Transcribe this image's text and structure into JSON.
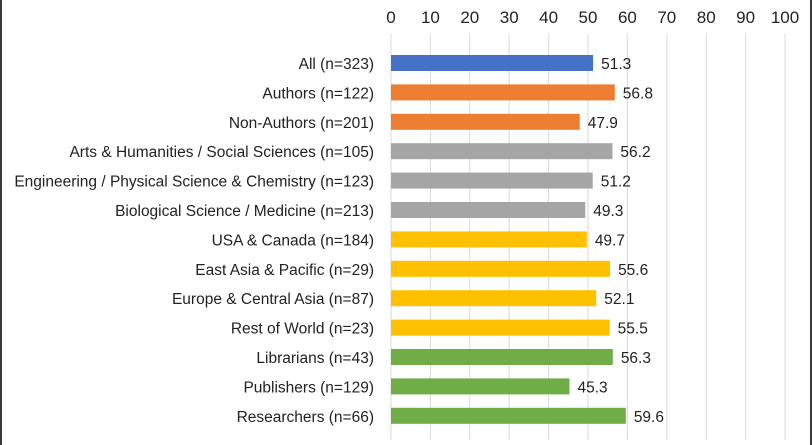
{
  "chart_data": {
    "type": "bar",
    "orientation": "horizontal",
    "categories": [
      "All (n=323)",
      "Authors (n=122)",
      "Non-Authors (n=201)",
      "Arts & Humanities / Social Sciences (n=105)",
      "Engineering / Physical Science & Chemistry (n=123)",
      "Biological Science / Medicine (n=213)",
      "USA & Canada (n=184)",
      "East Asia & Pacific (n=29)",
      "Europe & Central Asia (n=87)",
      "Rest of World (n=23)",
      "Librarians (n=43)",
      "Publishers (n=129)",
      "Researchers (n=66)"
    ],
    "values": [
      51.3,
      56.8,
      47.9,
      56.2,
      51.2,
      49.3,
      49.7,
      55.6,
      52.1,
      55.5,
      56.3,
      45.3,
      59.6
    ],
    "data_labels": [
      "51.3",
      "56.8",
      "47.9",
      "56.2",
      "51.2",
      "49.3",
      "49.7",
      "55.6",
      "52.1",
      "55.5",
      "56.3",
      "45.3",
      "59.6"
    ],
    "bar_colors": [
      "#4472C4",
      "#ED7D31",
      "#ED7D31",
      "#A5A5A5",
      "#A5A5A5",
      "#A5A5A5",
      "#FFC000",
      "#FFC000",
      "#FFC000",
      "#FFC000",
      "#70AD47",
      "#70AD47",
      "#70AD47"
    ],
    "xlim": [
      0,
      100
    ],
    "xticks": [
      "0",
      "10",
      "20",
      "30",
      "40",
      "50",
      "60",
      "70",
      "80",
      "90",
      "100"
    ],
    "x_axis_position": "top",
    "grid": true,
    "title": "",
    "xlabel": "",
    "ylabel": ""
  }
}
